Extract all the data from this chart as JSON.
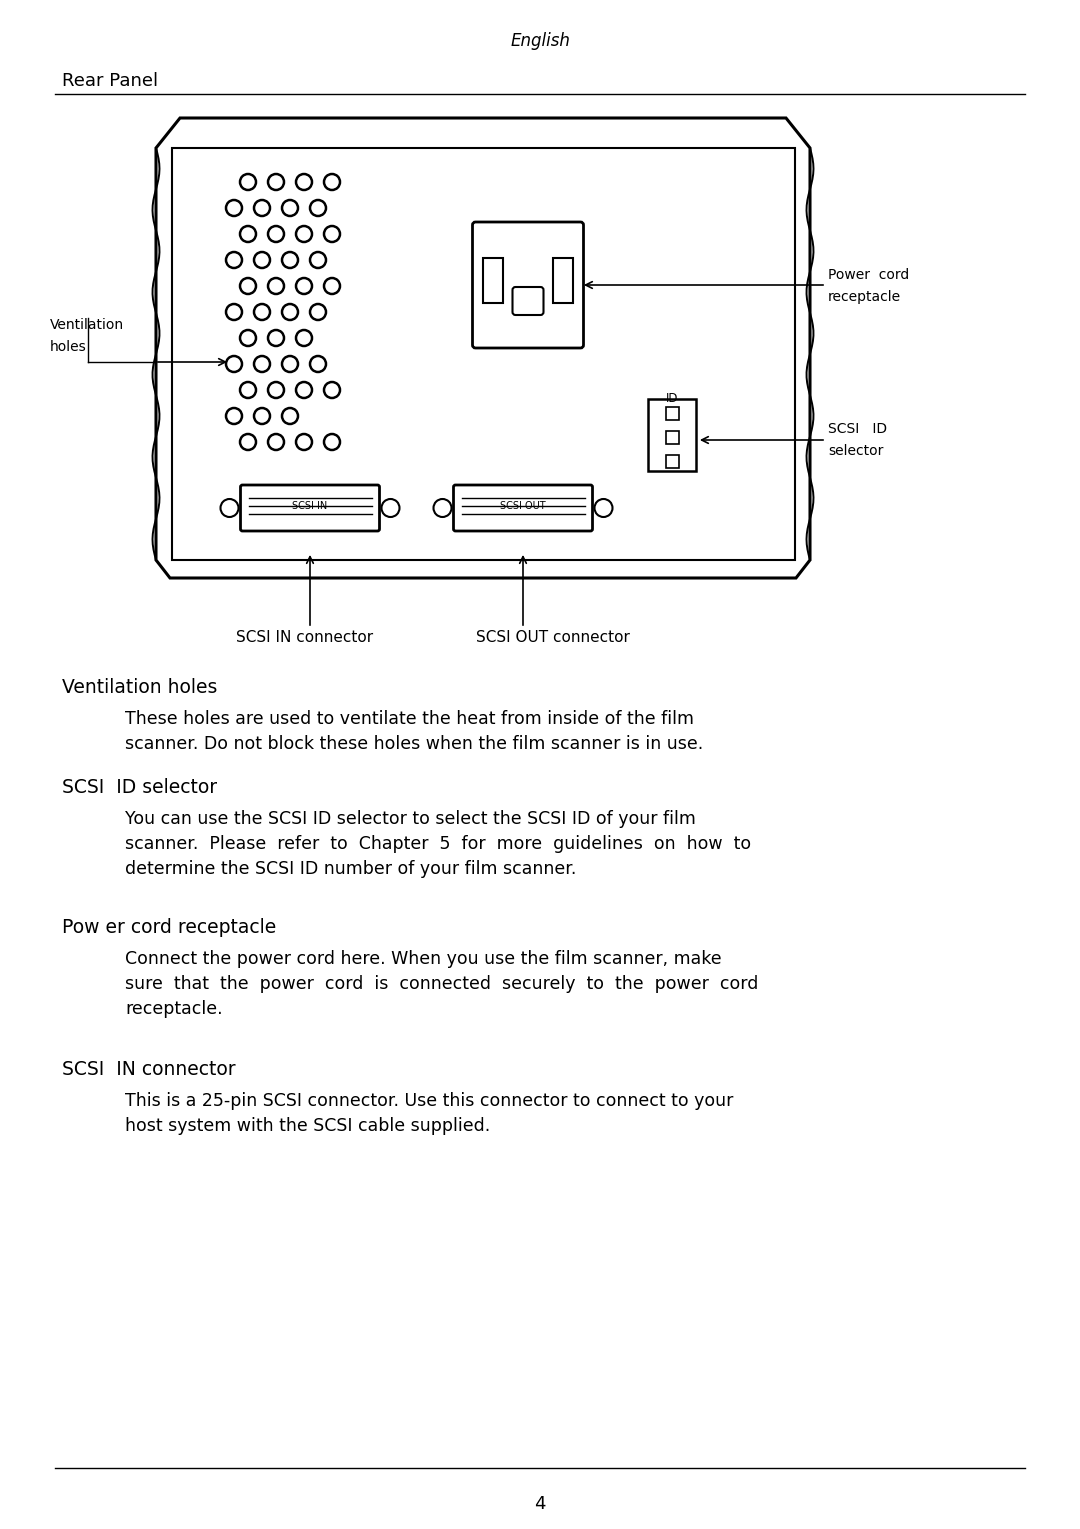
{
  "bg_color": "#ffffff",
  "header_text": "English",
  "section_title": "Rear Panel",
  "page_number": "4",
  "heading1": "Ventilation holes",
  "body1_l1": "These holes are used to ventilate the heat from inside of the film",
  "body1_l2": "scanner. Do not block these holes when the film scanner is in use.",
  "heading2": "SCSI  ID selector",
  "body2_l1": "You can use the SCSI ID selector to select the SCSI ID of your film",
  "body2_l2": "scanner.  Please  refer  to  Chapter  5  for  more  guidelines  on  how  to",
  "body2_l3": "determine the SCSI ID number of your film scanner.",
  "heading3": "Pow er cord receptacle",
  "body3_l1": "Connect the power cord here. When you use the film scanner, make",
  "body3_l2": "sure  that  the  power  cord  is  connected  securely  to  the  power  cord",
  "body3_l3": "receptacle.",
  "heading4": "SCSI  IN connector",
  "body4_l1": "This is a 25-pin SCSI connector. Use this connector to connect to your",
  "body4_l2": "host system with the SCSI cable supplied.",
  "label_ventilation_l1": "Ventilation",
  "label_ventilation_l2": "holes",
  "label_power_cord_l1": "Power  cord",
  "label_power_cord_l2": "receptacle",
  "label_scsi_id_l1": "SCSI   ID",
  "label_scsi_id_l2": "selector",
  "label_scsi_in_conn": "SCSI IN connector",
  "label_scsi_out_conn": "SCSI OUT connector",
  "label_id": "ID"
}
